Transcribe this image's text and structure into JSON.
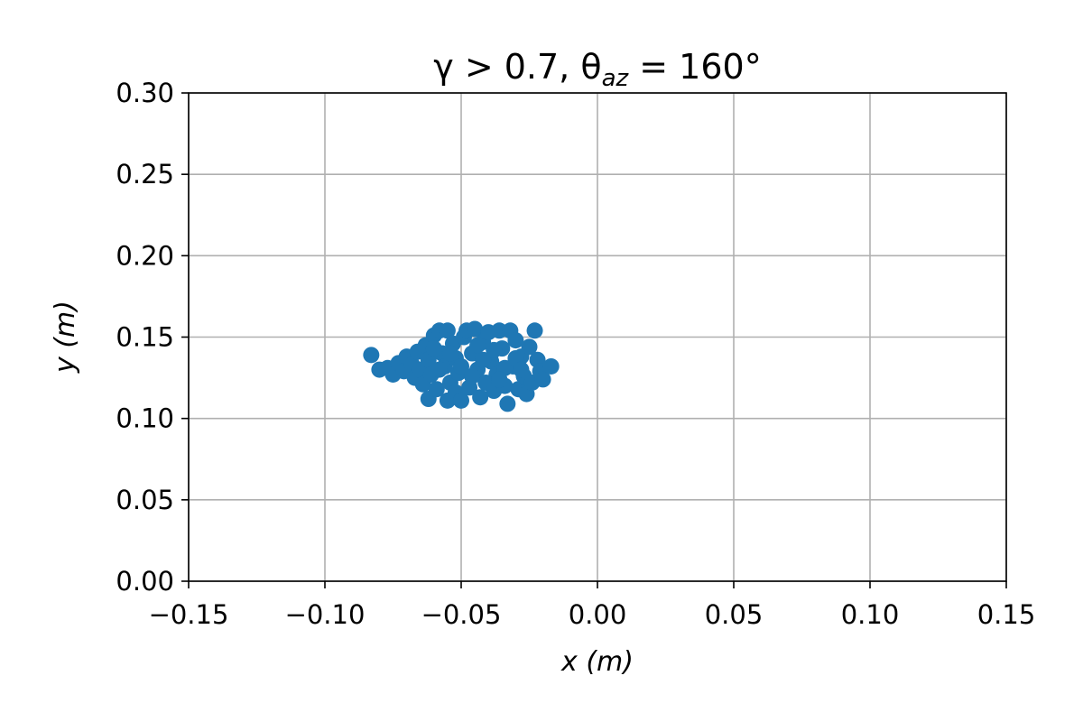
{
  "chart_data": {
    "type": "scatter",
    "title": {
      "main": "γ > 0.7, θ",
      "sub": "az",
      "rest": " = 160°"
    },
    "xlabel": "x (m)",
    "ylabel": "y (m)",
    "xlim": [
      -0.15,
      0.15
    ],
    "ylim": [
      0.0,
      0.3
    ],
    "xticks": [
      -0.15,
      -0.1,
      -0.05,
      0.0,
      0.05,
      0.1,
      0.15
    ],
    "xtick_labels": [
      "−0.15",
      "−0.10",
      "−0.05",
      "0.00",
      "0.05",
      "0.10",
      "0.15"
    ],
    "yticks": [
      0.0,
      0.05,
      0.1,
      0.15,
      0.2,
      0.25,
      0.3
    ],
    "ytick_labels": [
      "0.00",
      "0.05",
      "0.10",
      "0.15",
      "0.20",
      "0.25",
      "0.30"
    ],
    "grid": true,
    "color": "#1f77b4",
    "series": [
      {
        "points": [
          [
            -0.083,
            0.139
          ],
          [
            -0.08,
            0.13
          ],
          [
            -0.077,
            0.131
          ],
          [
            -0.075,
            0.127
          ],
          [
            -0.073,
            0.134
          ],
          [
            -0.071,
            0.129
          ],
          [
            -0.07,
            0.138
          ],
          [
            -0.068,
            0.133
          ],
          [
            -0.067,
            0.125
          ],
          [
            -0.066,
            0.141
          ],
          [
            -0.065,
            0.13
          ],
          [
            -0.064,
            0.121
          ],
          [
            -0.063,
            0.145
          ],
          [
            -0.062,
            0.136
          ],
          [
            -0.062,
            0.112
          ],
          [
            -0.061,
            0.127
          ],
          [
            -0.06,
            0.151
          ],
          [
            -0.059,
            0.118
          ],
          [
            -0.058,
            0.154
          ],
          [
            -0.057,
            0.14
          ],
          [
            -0.056,
            0.132
          ],
          [
            -0.055,
            0.154
          ],
          [
            -0.055,
            0.111
          ],
          [
            -0.054,
            0.122
          ],
          [
            -0.053,
            0.146
          ],
          [
            -0.052,
            0.137
          ],
          [
            -0.052,
            0.116
          ],
          [
            -0.051,
            0.128
          ],
          [
            -0.05,
            0.111
          ],
          [
            -0.049,
            0.15
          ],
          [
            -0.048,
            0.154
          ],
          [
            -0.047,
            0.119
          ],
          [
            -0.046,
            0.14
          ],
          [
            -0.045,
            0.155
          ],
          [
            -0.044,
            0.13
          ],
          [
            -0.043,
            0.113
          ],
          [
            -0.042,
            0.147
          ],
          [
            -0.041,
            0.122
          ],
          [
            -0.04,
            0.153
          ],
          [
            -0.039,
            0.135
          ],
          [
            -0.038,
            0.117
          ],
          [
            -0.037,
            0.127
          ],
          [
            -0.036,
            0.154
          ],
          [
            -0.035,
            0.143
          ],
          [
            -0.034,
            0.12
          ],
          [
            -0.033,
            0.109
          ],
          [
            -0.032,
            0.154
          ],
          [
            -0.031,
            0.132
          ],
          [
            -0.03,
            0.148
          ],
          [
            -0.029,
            0.118
          ],
          [
            -0.028,
            0.138
          ],
          [
            -0.027,
            0.126
          ],
          [
            -0.026,
            0.115
          ],
          [
            -0.025,
            0.144
          ],
          [
            -0.024,
            0.122
          ],
          [
            -0.023,
            0.154
          ],
          [
            -0.022,
            0.136
          ],
          [
            -0.021,
            0.129
          ],
          [
            -0.02,
            0.124
          ],
          [
            -0.017,
            0.132
          ],
          [
            -0.058,
            0.13
          ],
          [
            -0.054,
            0.14
          ],
          [
            -0.05,
            0.132
          ],
          [
            -0.046,
            0.126
          ],
          [
            -0.042,
            0.136
          ],
          [
            -0.038,
            0.142
          ],
          [
            -0.034,
            0.131
          ],
          [
            -0.03,
            0.137
          ],
          [
            -0.06,
            0.143
          ],
          [
            -0.044,
            0.145
          ],
          [
            -0.036,
            0.124
          ],
          [
            -0.028,
            0.13
          ]
        ]
      }
    ]
  }
}
